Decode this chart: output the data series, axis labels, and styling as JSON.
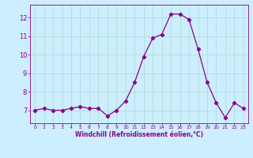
{
  "x": [
    0,
    1,
    2,
    3,
    4,
    5,
    6,
    7,
    8,
    9,
    10,
    11,
    12,
    13,
    14,
    15,
    16,
    17,
    18,
    19,
    20,
    21,
    22,
    23
  ],
  "y": [
    7.0,
    7.1,
    7.0,
    7.0,
    7.1,
    7.2,
    7.1,
    7.1,
    6.7,
    7.0,
    7.5,
    8.5,
    9.9,
    10.9,
    11.1,
    12.2,
    12.2,
    11.9,
    10.3,
    8.5,
    7.4,
    6.6,
    7.4,
    7.1
  ],
  "line_color": "#8b008b",
  "marker": "D",
  "marker_size": 2.2,
  "bg_color": "#cceeff",
  "grid_color": "#aaddcc",
  "xlabel": "Windchill (Refroidissement éolien,°C)",
  "xlabel_color": "#8b008b",
  "tick_color": "#8b008b",
  "label_color": "#8b008b",
  "ylim": [
    6.3,
    12.7
  ],
  "xlim": [
    -0.5,
    23.5
  ],
  "yticks": [
    7,
    8,
    9,
    10,
    11,
    12
  ],
  "xticks": [
    0,
    1,
    2,
    3,
    4,
    5,
    6,
    7,
    8,
    9,
    10,
    11,
    12,
    13,
    14,
    15,
    16,
    17,
    18,
    19,
    20,
    21,
    22,
    23
  ],
  "figsize": [
    3.2,
    2.0
  ],
  "dpi": 100
}
